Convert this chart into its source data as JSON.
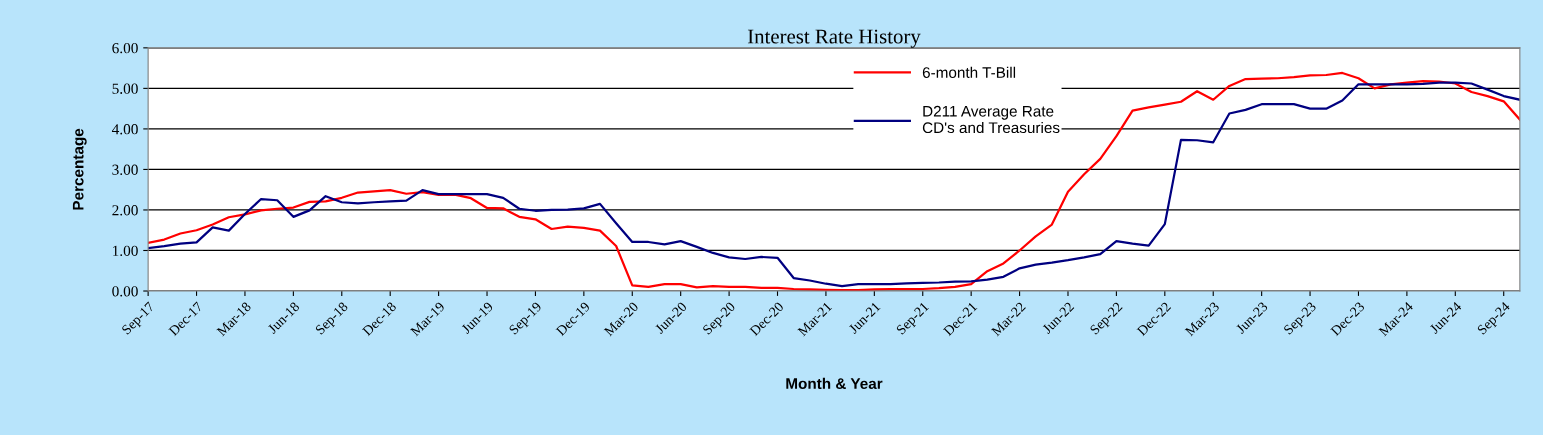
{
  "chart_data": {
    "type": "line",
    "title": "Interest Rate History",
    "xlabel": "Month & Year",
    "ylabel": "Percentage",
    "categories": [
      "Sep-17",
      null,
      null,
      "Dec-17",
      null,
      null,
      "Mar-18",
      null,
      null,
      "Jun-18",
      null,
      null,
      "Sep-18",
      null,
      null,
      "Dec-18",
      null,
      null,
      "Mar-19",
      null,
      null,
      "Jun-19",
      null,
      null,
      "Sep-19",
      null,
      null,
      "Dec-19",
      null,
      null,
      "Mar-20",
      null,
      null,
      "Jun-20",
      null,
      null,
      "Sep-20",
      null,
      null,
      "Dec-20",
      null,
      null,
      "Mar-21",
      null,
      null,
      "Jun-21",
      null,
      null,
      "Sep-21",
      null,
      null,
      "Dec-21",
      null,
      null,
      "Mar-22",
      null,
      null,
      "Jun-22",
      null,
      null,
      "Sep-22",
      null,
      null,
      "Dec-22",
      null,
      null,
      "Mar-23",
      null,
      null,
      "Jun-23",
      null,
      null,
      "Sep-23",
      null,
      null,
      "Dec-23",
      null,
      null,
      "Mar-24",
      null,
      null,
      "Jun-24",
      null,
      null,
      "Sep-24",
      null
    ],
    "series": [
      {
        "name": "6-month T-Bill",
        "color": "#ff0000",
        "values": [
          1.19,
          1.27,
          1.42,
          1.5,
          1.64,
          1.82,
          1.89,
          1.99,
          2.03,
          2.06,
          2.2,
          2.21,
          2.3,
          2.43,
          2.46,
          2.49,
          2.4,
          2.44,
          2.37,
          2.38,
          2.29,
          2.05,
          2.04,
          1.83,
          1.77,
          1.53,
          1.59,
          1.56,
          1.49,
          1.11,
          0.14,
          0.1,
          0.17,
          0.17,
          0.09,
          0.12,
          0.1,
          0.1,
          0.08,
          0.08,
          0.05,
          0.04,
          0.03,
          0.02,
          0.02,
          0.04,
          0.05,
          0.05,
          0.05,
          0.07,
          0.1,
          0.17,
          0.49,
          0.68,
          1.0,
          1.35,
          1.64,
          2.45,
          2.88,
          3.26,
          3.82,
          4.45,
          4.53,
          4.6,
          4.67,
          4.93,
          4.72,
          5.06,
          5.23,
          5.24,
          5.25,
          5.28,
          5.32,
          5.33,
          5.38,
          5.25,
          5.0,
          5.1,
          5.14,
          5.18,
          5.17,
          5.12,
          4.91,
          4.81,
          4.68,
          4.23
        ]
      },
      {
        "name": "D211 Average Rate\nCD's and Treasuries",
        "color": "#000080",
        "values": [
          1.06,
          1.11,
          1.17,
          1.2,
          1.57,
          1.49,
          1.9,
          2.27,
          2.24,
          1.83,
          1.99,
          2.34,
          2.19,
          2.16,
          2.19,
          2.21,
          2.23,
          2.49,
          2.39,
          2.39,
          2.39,
          2.39,
          2.3,
          2.03,
          1.98,
          2.0,
          2.01,
          2.04,
          2.15,
          1.67,
          1.21,
          1.21,
          1.15,
          1.23,
          1.09,
          0.94,
          0.83,
          0.79,
          0.84,
          0.82,
          0.32,
          0.26,
          0.18,
          0.12,
          0.17,
          0.17,
          0.17,
          0.19,
          0.2,
          0.21,
          0.23,
          0.24,
          0.28,
          0.35,
          0.56,
          0.65,
          0.7,
          0.76,
          0.83,
          0.91,
          1.23,
          1.17,
          1.12,
          1.65,
          3.73,
          3.72,
          3.67,
          4.38,
          4.47,
          4.61,
          4.61,
          4.61,
          4.5,
          4.5,
          4.7,
          5.1,
          5.1,
          5.1,
          5.1,
          5.11,
          5.14,
          5.14,
          5.12,
          4.97,
          4.81,
          4.72
        ]
      }
    ],
    "ylim": [
      0,
      6
    ],
    "yticks": [
      {
        "value": 0,
        "label": "0.00"
      },
      {
        "value": 1,
        "label": "1.00"
      },
      {
        "value": 2,
        "label": "2.00"
      },
      {
        "value": 3,
        "label": "3.00"
      },
      {
        "value": 4,
        "label": "4.00"
      },
      {
        "value": 5,
        "label": "5.00"
      },
      {
        "value": 6,
        "label": "6.00"
      }
    ],
    "grid": "y",
    "legend": "top",
    "marker": "none",
    "line_style": "solid"
  }
}
